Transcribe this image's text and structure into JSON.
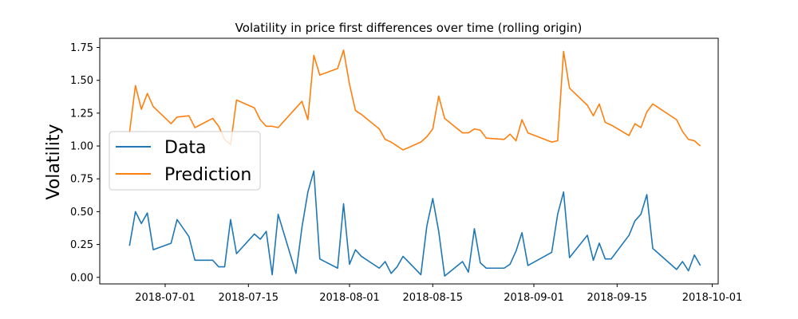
{
  "chart_data": {
    "type": "line",
    "title": "Volatility in price first differences over time (rolling origin)",
    "xlabel": "",
    "ylabel": "Volatility",
    "xlim": [
      "2018-06-20",
      "2018-10-02"
    ],
    "ylim": [
      -0.05,
      1.82
    ],
    "x_ticks": [
      "2018-07-01",
      "2018-07-15",
      "2018-08-01",
      "2018-08-15",
      "2018-09-01",
      "2018-09-15",
      "2018-10-01"
    ],
    "y_ticks": [
      0.0,
      0.25,
      0.5,
      0.75,
      1.0,
      1.25,
      1.5,
      1.75
    ],
    "y_tick_labels": [
      "0.00",
      "0.25",
      "0.50",
      "0.75",
      "1.00",
      "1.25",
      "1.50",
      "1.75"
    ],
    "legend_position": "center-left",
    "grid": false,
    "series": [
      {
        "name": "Data",
        "color": "#1f77b4",
        "points": [
          [
            "2018-06-25",
            0.24
          ],
          [
            "2018-06-26",
            0.5
          ],
          [
            "2018-06-27",
            0.41
          ],
          [
            "2018-06-28",
            0.49
          ],
          [
            "2018-06-29",
            0.21
          ],
          [
            "2018-07-02",
            0.26
          ],
          [
            "2018-07-03",
            0.44
          ],
          [
            "2018-07-05",
            0.31
          ],
          [
            "2018-07-06",
            0.13
          ],
          [
            "2018-07-09",
            0.13
          ],
          [
            "2018-07-10",
            0.08
          ],
          [
            "2018-07-11",
            0.08
          ],
          [
            "2018-07-12",
            0.44
          ],
          [
            "2018-07-13",
            0.18
          ],
          [
            "2018-07-16",
            0.33
          ],
          [
            "2018-07-17",
            0.29
          ],
          [
            "2018-07-18",
            0.35
          ],
          [
            "2018-07-19",
            0.02
          ],
          [
            "2018-07-20",
            0.48
          ],
          [
            "2018-07-23",
            0.03
          ],
          [
            "2018-07-24",
            0.38
          ],
          [
            "2018-07-25",
            0.65
          ],
          [
            "2018-07-26",
            0.81
          ],
          [
            "2018-07-27",
            0.14
          ],
          [
            "2018-07-30",
            0.07
          ],
          [
            "2018-07-31",
            0.56
          ],
          [
            "2018-08-01",
            0.1
          ],
          [
            "2018-08-02",
            0.21
          ],
          [
            "2018-08-03",
            0.16
          ],
          [
            "2018-08-06",
            0.07
          ],
          [
            "2018-08-07",
            0.12
          ],
          [
            "2018-08-08",
            0.03
          ],
          [
            "2018-08-09",
            0.08
          ],
          [
            "2018-08-10",
            0.16
          ],
          [
            "2018-08-13",
            0.02
          ],
          [
            "2018-08-14",
            0.39
          ],
          [
            "2018-08-15",
            0.6
          ],
          [
            "2018-08-16",
            0.35
          ],
          [
            "2018-08-17",
            0.01
          ],
          [
            "2018-08-20",
            0.12
          ],
          [
            "2018-08-21",
            0.04
          ],
          [
            "2018-08-22",
            0.37
          ],
          [
            "2018-08-23",
            0.11
          ],
          [
            "2018-08-24",
            0.07
          ],
          [
            "2018-08-27",
            0.07
          ],
          [
            "2018-08-28",
            0.1
          ],
          [
            "2018-08-29",
            0.2
          ],
          [
            "2018-08-30",
            0.34
          ],
          [
            "2018-08-31",
            0.09
          ],
          [
            "2018-09-04",
            0.19
          ],
          [
            "2018-09-05",
            0.48
          ],
          [
            "2018-09-06",
            0.65
          ],
          [
            "2018-09-07",
            0.15
          ],
          [
            "2018-09-10",
            0.32
          ],
          [
            "2018-09-11",
            0.13
          ],
          [
            "2018-09-12",
            0.26
          ],
          [
            "2018-09-13",
            0.14
          ],
          [
            "2018-09-14",
            0.14
          ],
          [
            "2018-09-17",
            0.32
          ],
          [
            "2018-09-18",
            0.43
          ],
          [
            "2018-09-19",
            0.48
          ],
          [
            "2018-09-20",
            0.63
          ],
          [
            "2018-09-21",
            0.22
          ],
          [
            "2018-09-25",
            0.06
          ],
          [
            "2018-09-26",
            0.12
          ],
          [
            "2018-09-27",
            0.05
          ],
          [
            "2018-09-28",
            0.17
          ],
          [
            "2018-09-29",
            0.09
          ]
        ]
      },
      {
        "name": "Prediction",
        "color": "#ff7f0e",
        "points": [
          [
            "2018-06-25",
            1.1
          ],
          [
            "2018-06-26",
            1.46
          ],
          [
            "2018-06-27",
            1.28
          ],
          [
            "2018-06-28",
            1.4
          ],
          [
            "2018-06-29",
            1.3
          ],
          [
            "2018-07-02",
            1.17
          ],
          [
            "2018-07-03",
            1.22
          ],
          [
            "2018-07-05",
            1.23
          ],
          [
            "2018-07-06",
            1.14
          ],
          [
            "2018-07-09",
            1.21
          ],
          [
            "2018-07-10",
            1.15
          ],
          [
            "2018-07-11",
            1.05
          ],
          [
            "2018-07-12",
            1.01
          ],
          [
            "2018-07-13",
            1.35
          ],
          [
            "2018-07-16",
            1.29
          ],
          [
            "2018-07-17",
            1.2
          ],
          [
            "2018-07-18",
            1.15
          ],
          [
            "2018-07-19",
            1.15
          ],
          [
            "2018-07-20",
            1.14
          ],
          [
            "2018-07-23",
            1.29
          ],
          [
            "2018-07-24",
            1.34
          ],
          [
            "2018-07-25",
            1.2
          ],
          [
            "2018-07-26",
            1.69
          ],
          [
            "2018-07-27",
            1.54
          ],
          [
            "2018-07-30",
            1.59
          ],
          [
            "2018-07-31",
            1.73
          ],
          [
            "2018-08-01",
            1.47
          ],
          [
            "2018-08-02",
            1.27
          ],
          [
            "2018-08-03",
            1.24
          ],
          [
            "2018-08-06",
            1.13
          ],
          [
            "2018-08-07",
            1.05
          ],
          [
            "2018-08-08",
            1.03
          ],
          [
            "2018-08-09",
            1.0
          ],
          [
            "2018-08-10",
            0.97
          ],
          [
            "2018-08-13",
            1.03
          ],
          [
            "2018-08-14",
            1.07
          ],
          [
            "2018-08-15",
            1.13
          ],
          [
            "2018-08-16",
            1.38
          ],
          [
            "2018-08-17",
            1.21
          ],
          [
            "2018-08-20",
            1.1
          ],
          [
            "2018-08-21",
            1.1
          ],
          [
            "2018-08-22",
            1.13
          ],
          [
            "2018-08-23",
            1.12
          ],
          [
            "2018-08-24",
            1.06
          ],
          [
            "2018-08-27",
            1.05
          ],
          [
            "2018-08-28",
            1.09
          ],
          [
            "2018-08-29",
            1.04
          ],
          [
            "2018-08-30",
            1.2
          ],
          [
            "2018-08-31",
            1.1
          ],
          [
            "2018-09-04",
            1.03
          ],
          [
            "2018-09-05",
            1.04
          ],
          [
            "2018-09-06",
            1.72
          ],
          [
            "2018-09-07",
            1.44
          ],
          [
            "2018-09-10",
            1.31
          ],
          [
            "2018-09-11",
            1.23
          ],
          [
            "2018-09-12",
            1.32
          ],
          [
            "2018-09-13",
            1.18
          ],
          [
            "2018-09-14",
            1.16
          ],
          [
            "2018-09-17",
            1.08
          ],
          [
            "2018-09-18",
            1.17
          ],
          [
            "2018-09-19",
            1.14
          ],
          [
            "2018-09-20",
            1.26
          ],
          [
            "2018-09-21",
            1.32
          ],
          [
            "2018-09-25",
            1.2
          ],
          [
            "2018-09-26",
            1.11
          ],
          [
            "2018-09-27",
            1.05
          ],
          [
            "2018-09-28",
            1.04
          ],
          [
            "2018-09-29",
            1.0
          ]
        ]
      }
    ]
  }
}
